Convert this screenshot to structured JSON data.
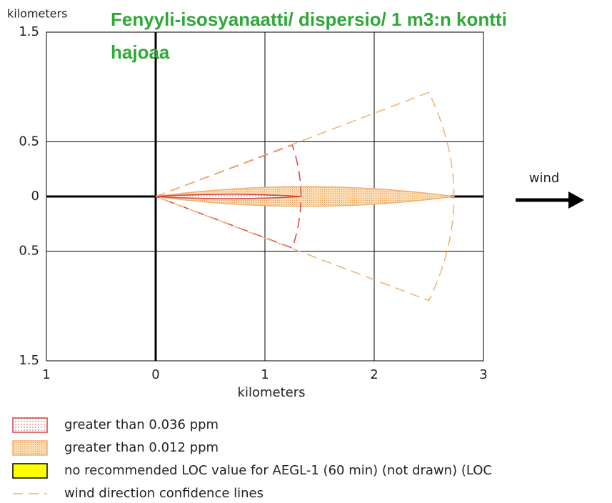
{
  "chart_data": {
    "type": "threat_zone",
    "title": "Fenyyli-isosyanaatti/ dispersio/ 1 m3:n kontti hajoaa",
    "title_color": "#2ea836",
    "y_label": "kilometers",
    "x_label": "kilometers",
    "annotation": "wind",
    "xlim": [
      -1,
      3
    ],
    "ylim": [
      -1.5,
      1.5
    ],
    "xticks": [
      {
        "value": -1,
        "label": "1"
      },
      0,
      1,
      2,
      3
    ],
    "yticks": [
      1.5,
      0.5,
      0,
      {
        "value": -0.5,
        "label": "0.5"
      },
      {
        "value": -1.5,
        "label": "1.5"
      }
    ],
    "grid": true,
    "zones": [
      {
        "name": "greater than 0.036 ppm",
        "color": "#d94040",
        "fill": "#f7d6d6",
        "length": 1.33,
        "half_width": 0.02
      },
      {
        "name": "greater than 0.012 ppm",
        "color": "#f0b070",
        "fill": "#fbdcb4",
        "length": 2.73,
        "half_width": 0.09
      }
    ],
    "legend_extra": [
      {
        "name": "no recommended LOC value for AEGL-1 (60 min) (not drawn) (LOC",
        "color": "#ffff00"
      },
      {
        "name": "wind direction confidence lines",
        "color": "#f0b070"
      }
    ],
    "confidence_lines": [
      {
        "color": "#d94040",
        "x": [
          1.25,
          1.33,
          1.25
        ],
        "y": [
          0.47,
          0,
          -0.47
        ]
      },
      {
        "color": "#f0b070",
        "x": [
          2.5,
          2.73,
          2.5
        ],
        "y": [
          0.95,
          0,
          -0.95
        ]
      }
    ]
  }
}
